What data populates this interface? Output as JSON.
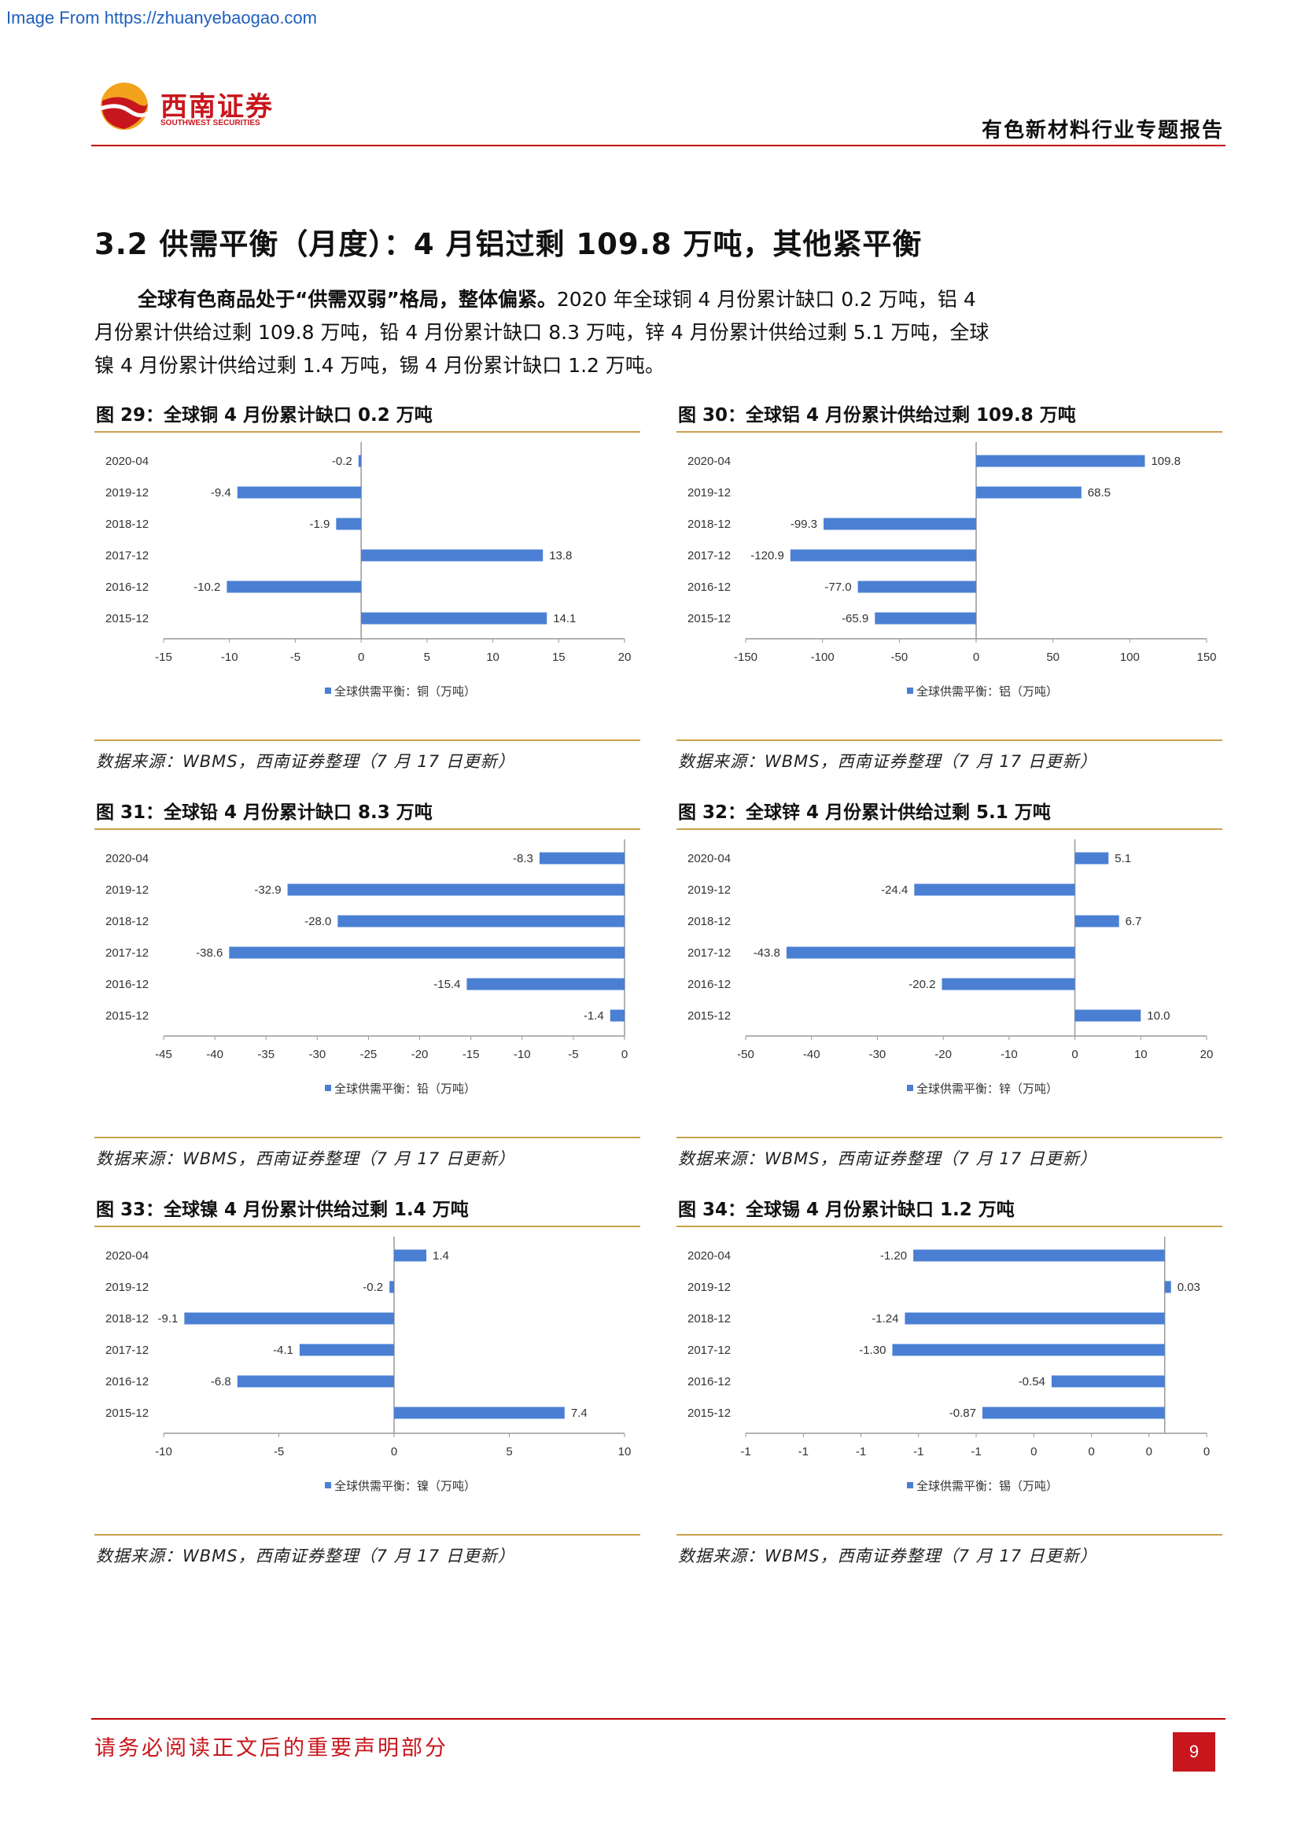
{
  "watermark": "Image From https://zhuanyebaogao.com",
  "header": {
    "logo_cn": "西南证券",
    "logo_en": "SOUTHWEST SECURITIES",
    "report_type": "有色新材料行业专题报告"
  },
  "section": {
    "title": "3.2 供需平衡（月度）：4 月铝过剩 109.8 万吨，其他紧平衡",
    "lead": "全球有色商品处于“供需双弱”格局，整体偏紧。",
    "body": "2020 年全球铜 4 月份累计缺口 0.2 万吨，铝 4 月份累计供给过剩 109.8 万吨，铅 4 月份累计缺口 8.3 万吨，锌 4 月份累计供给过剩 5.1 万吨，全球镍 4 月份累计供给过剩 1.4 万吨，锡 4 月份累计缺口 1.2 万吨。"
  },
  "figures": [
    {
      "title": "图 29：全球铜 4 月份累计缺口 0.2 万吨",
      "source": "数据来源：WBMS，西南证券整理（7 月 17 日更新）"
    },
    {
      "title": "图 30：全球铝 4 月份累计供给过剩 109.8 万吨",
      "source": "数据来源：WBMS，西南证券整理（7 月 17 日更新）"
    },
    {
      "title": "图 31：全球铅 4 月份累计缺口 8.3 万吨",
      "source": "数据来源：WBMS，西南证券整理（7 月 17 日更新）"
    },
    {
      "title": "图 32：全球锌 4 月份累计供给过剩 5.1 万吨",
      "source": "数据来源：WBMS，西南证券整理（7 月 17 日更新）"
    },
    {
      "title": "图 33：全球镍 4 月份累计供给过剩 1.4 万吨",
      "source": "数据来源：WBMS，西南证券整理（7 月 17 日更新）"
    },
    {
      "title": "图 34：全球锡 4 月份累计缺口 1.2 万吨",
      "source": "数据来源：WBMS，西南证券整理（7 月 17 日更新）"
    }
  ],
  "chart_data": [
    {
      "type": "bar",
      "orientation": "horizontal",
      "categories": [
        "2020-04",
        "2019-12",
        "2018-12",
        "2017-12",
        "2016-12",
        "2015-12"
      ],
      "series": [
        {
          "name": "全球供需平衡：铜（万吨）",
          "values": [
            -0.2,
            -9.4,
            -1.9,
            13.8,
            -10.2,
            14.1
          ],
          "labels": [
            "-0.2",
            "-9.4",
            "-1.9",
            "13.8",
            "-10.2",
            "14.1"
          ]
        }
      ],
      "xlim": [
        -15,
        20
      ],
      "xticks": [
        "-15",
        "-10",
        "-5",
        "0",
        "5",
        "10",
        "15",
        "20"
      ],
      "color": "#4a7fd4",
      "legend": "bottom"
    },
    {
      "type": "bar",
      "orientation": "horizontal",
      "categories": [
        "2020-04",
        "2019-12",
        "2018-12",
        "2017-12",
        "2016-12",
        "2015-12"
      ],
      "series": [
        {
          "name": "全球供需平衡：铝（万吨）",
          "values": [
            109.8,
            68.5,
            -99.3,
            -120.9,
            -77.0,
            -65.9
          ],
          "labels": [
            "109.8",
            "68.5",
            "-99.3",
            "-120.9",
            "-77.0",
            "-65.9"
          ]
        }
      ],
      "xlim": [
        -150,
        150
      ],
      "xticks": [
        "-150",
        "-100",
        "-50",
        "0",
        "50",
        "100",
        "150"
      ],
      "color": "#4a7fd4",
      "legend": "bottom"
    },
    {
      "type": "bar",
      "orientation": "horizontal",
      "categories": [
        "2020-04",
        "2019-12",
        "2018-12",
        "2017-12",
        "2016-12",
        "2015-12"
      ],
      "series": [
        {
          "name": "全球供需平衡：铅（万吨）",
          "values": [
            -8.3,
            -32.9,
            -28.0,
            -38.6,
            -15.4,
            -1.4
          ],
          "labels": [
            "-8.3",
            "-32.9",
            "-28.0",
            "-38.6",
            "-15.4",
            "-1.4"
          ]
        }
      ],
      "xlim": [
        -45,
        0
      ],
      "xticks": [
        "-45",
        "-40",
        "-35",
        "-30",
        "-25",
        "-20",
        "-15",
        "-10",
        "-5",
        "0"
      ],
      "color": "#4a7fd4",
      "legend": "bottom"
    },
    {
      "type": "bar",
      "orientation": "horizontal",
      "categories": [
        "2020-04",
        "2019-12",
        "2018-12",
        "2017-12",
        "2016-12",
        "2015-12"
      ],
      "series": [
        {
          "name": "全球供需平衡：锌（万吨）",
          "values": [
            5.1,
            -24.4,
            6.7,
            -43.8,
            -20.2,
            10.0
          ],
          "labels": [
            "5.1",
            "-24.4",
            "6.7",
            "-43.8",
            "-20.2",
            "10.0"
          ]
        }
      ],
      "xlim": [
        -50,
        20
      ],
      "xticks": [
        "-50",
        "-40",
        "-30",
        "-20",
        "-10",
        "0",
        "10",
        "20"
      ],
      "color": "#4a7fd4",
      "legend": "bottom"
    },
    {
      "type": "bar",
      "orientation": "horizontal",
      "categories": [
        "2020-04",
        "2019-12",
        "2018-12",
        "2017-12",
        "2016-12",
        "2015-12"
      ],
      "series": [
        {
          "name": "全球供需平衡：镍（万吨）",
          "values": [
            1.4,
            -0.2,
            -9.1,
            -4.1,
            -6.8,
            7.4
          ],
          "labels": [
            "1.4",
            "-0.2",
            "-9.1",
            "-4.1",
            "-6.8",
            "7.4"
          ]
        }
      ],
      "xlim": [
        -10,
        10
      ],
      "xticks": [
        "-10",
        "-5",
        "0",
        "5",
        "10"
      ],
      "color": "#4a7fd4",
      "legend": "bottom"
    },
    {
      "type": "bar",
      "orientation": "horizontal",
      "categories": [
        "2020-04",
        "2019-12",
        "2018-12",
        "2017-12",
        "2016-12",
        "2015-12"
      ],
      "series": [
        {
          "name": "全球供需平衡：锡（万吨）",
          "values": [
            -1.2,
            0.03,
            -1.24,
            -1.3,
            -0.54,
            -0.87
          ],
          "labels": [
            "-1.20",
            "0.03",
            "-1.24",
            "-1.30",
            "-0.54",
            "-0.87"
          ]
        }
      ],
      "xlim": [
        -2,
        0.2
      ],
      "xticks": [
        "-1",
        "-1",
        "-1",
        "-1",
        "-1",
        "0",
        "0",
        "0",
        "0"
      ],
      "color": "#4a7fd4",
      "legend": "bottom"
    }
  ],
  "footer": {
    "note": "请务必阅读正文后的重要声明部分",
    "page_number": "9"
  }
}
